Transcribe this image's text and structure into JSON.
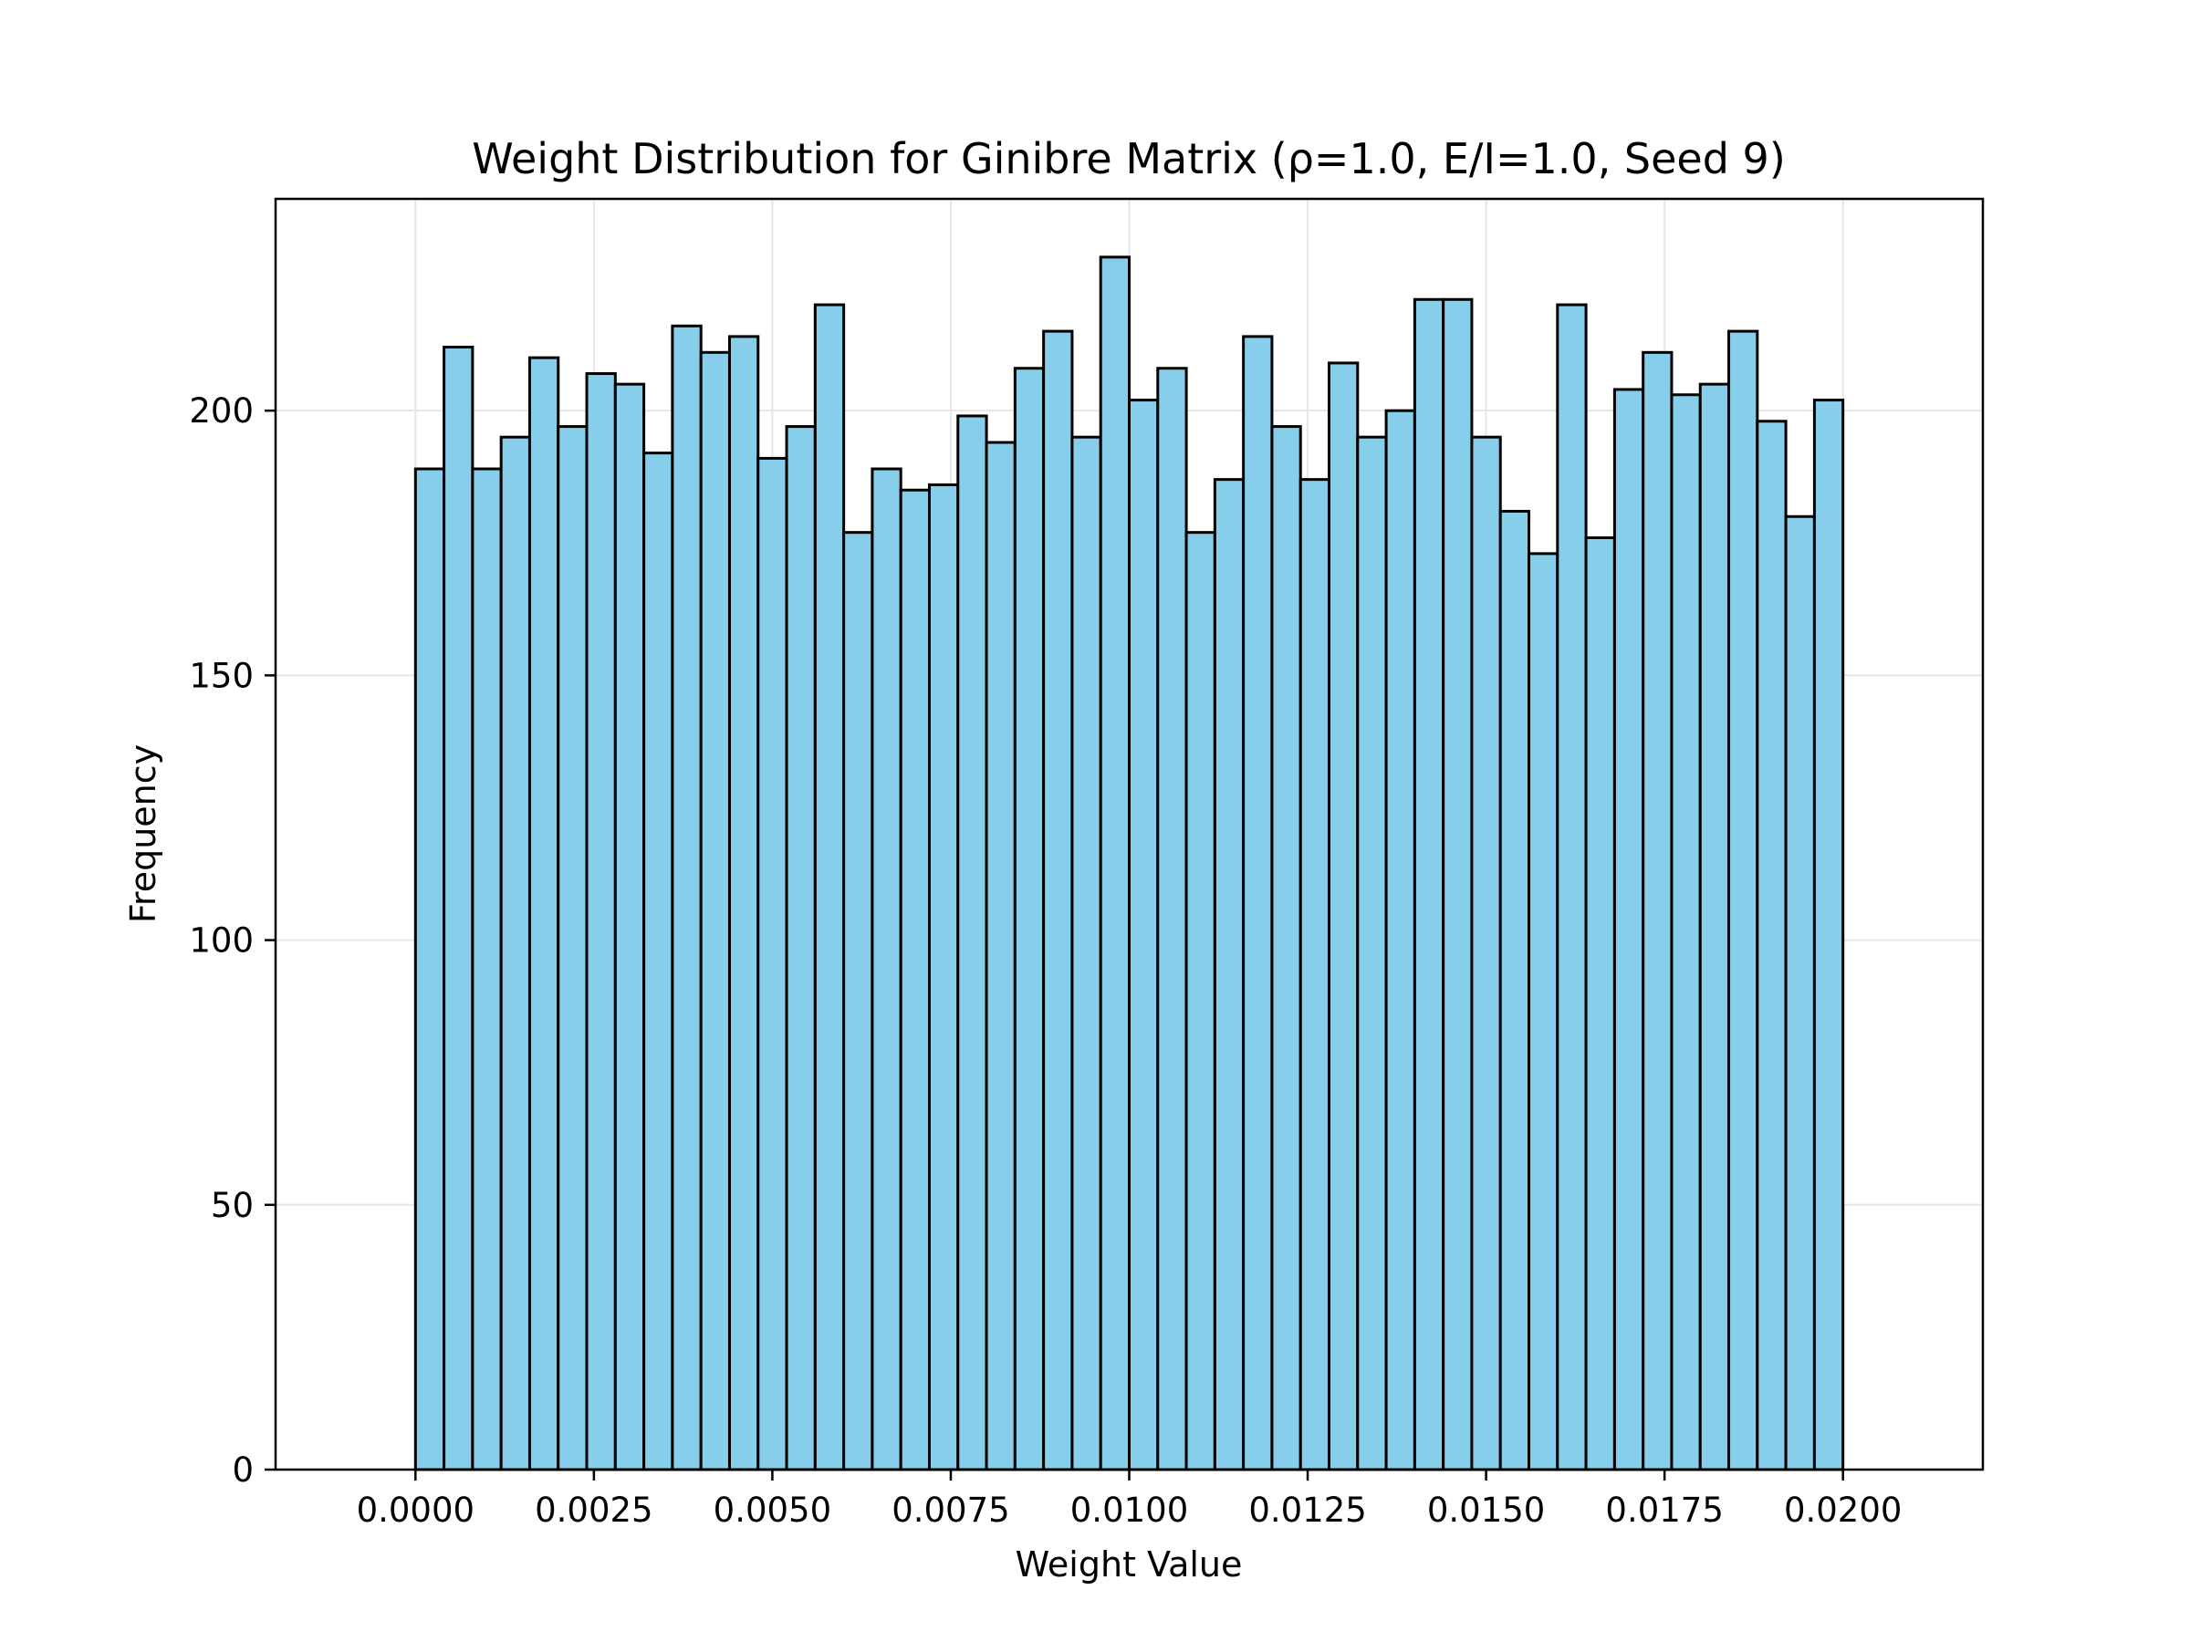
{
  "chart_data": {
    "type": "bar",
    "title": "Weight Distribution for Ginibre Matrix (ρ=1.0, E/I=1.0, Seed 9)",
    "xlabel": "Weight Value",
    "ylabel": "Frequency",
    "xlim": [
      -0.00196,
      0.02196
    ],
    "ylim": [
      0,
      240
    ],
    "grid": true,
    "bar_color": "#87ceeb",
    "edge_color": "#000000",
    "bin_range": [
      0.0,
      0.02
    ],
    "x_ticks": [
      "0.0000",
      "0.0025",
      "0.0050",
      "0.0075",
      "0.0100",
      "0.0125",
      "0.0150",
      "0.0175",
      "0.0200"
    ],
    "y_ticks": [
      "0",
      "50",
      "100",
      "150",
      "200"
    ],
    "values": [
      189,
      212,
      189,
      195,
      210,
      197,
      207,
      205,
      192,
      216,
      211,
      214,
      191,
      197,
      220,
      177,
      189,
      185,
      186,
      199,
      194,
      208,
      215,
      195,
      229,
      202,
      208,
      177,
      187,
      214,
      197,
      187,
      209,
      195,
      200,
      221,
      221,
      195,
      181,
      173,
      220,
      176,
      204,
      211,
      203,
      205,
      215,
      198,
      180,
      202
    ]
  }
}
